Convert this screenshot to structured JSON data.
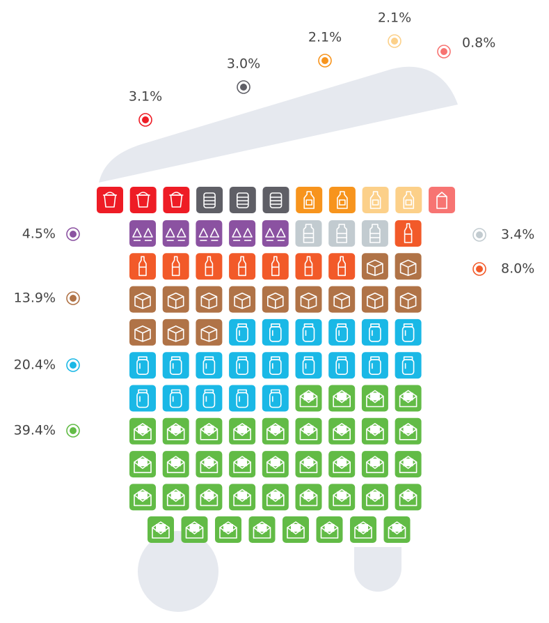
{
  "chart_data": {
    "type": "waffle",
    "series": [
      {
        "color": "#ee1c25",
        "value": 3.1,
        "value_label": "3.1%"
      },
      {
        "color": "#5f5f66",
        "value": 3.0,
        "value_label": "3.0%"
      },
      {
        "color": "#f7941d",
        "value": 2.1,
        "value_label": "2.1%"
      },
      {
        "color": "#fcd089",
        "value": 2.1,
        "value_label": "2.1%"
      },
      {
        "color": "#f77472",
        "value": 0.8,
        "value_label": "0.8%"
      },
      {
        "color": "#8b52a1",
        "value": 4.5,
        "value_label": "4.5%"
      },
      {
        "color": "#c2cbd0",
        "value": 3.4,
        "value_label": "3.4%"
      },
      {
        "color": "#f25a29",
        "value": 8.0,
        "value_label": "8.0%"
      },
      {
        "color": "#b07347",
        "value": 13.9,
        "value_label": "13.9%"
      },
      {
        "color": "#1ab8e6",
        "value": 20.4,
        "value_label": "20.4%"
      },
      {
        "color": "#62bb46",
        "value": 39.4,
        "value_label": "39.4%"
      }
    ]
  }
}
